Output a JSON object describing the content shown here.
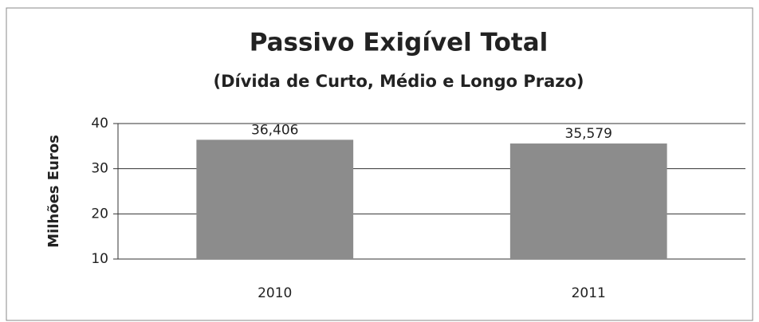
{
  "chart_data": {
    "type": "bar",
    "title": "Passivo Exigível Total",
    "subtitle": "(Dívida de Curto, Médio e Longo Prazo)",
    "y_label": "Milhões Euros",
    "categories": [
      "2010",
      "2011"
    ],
    "values": [
      36.406,
      35.579
    ],
    "value_labels": [
      "36,406",
      "35,579"
    ],
    "color": "#8c8c8c",
    "ylim": [
      10,
      40
    ],
    "yticks": [
      10,
      20,
      30,
      40
    ],
    "grid": true
  }
}
